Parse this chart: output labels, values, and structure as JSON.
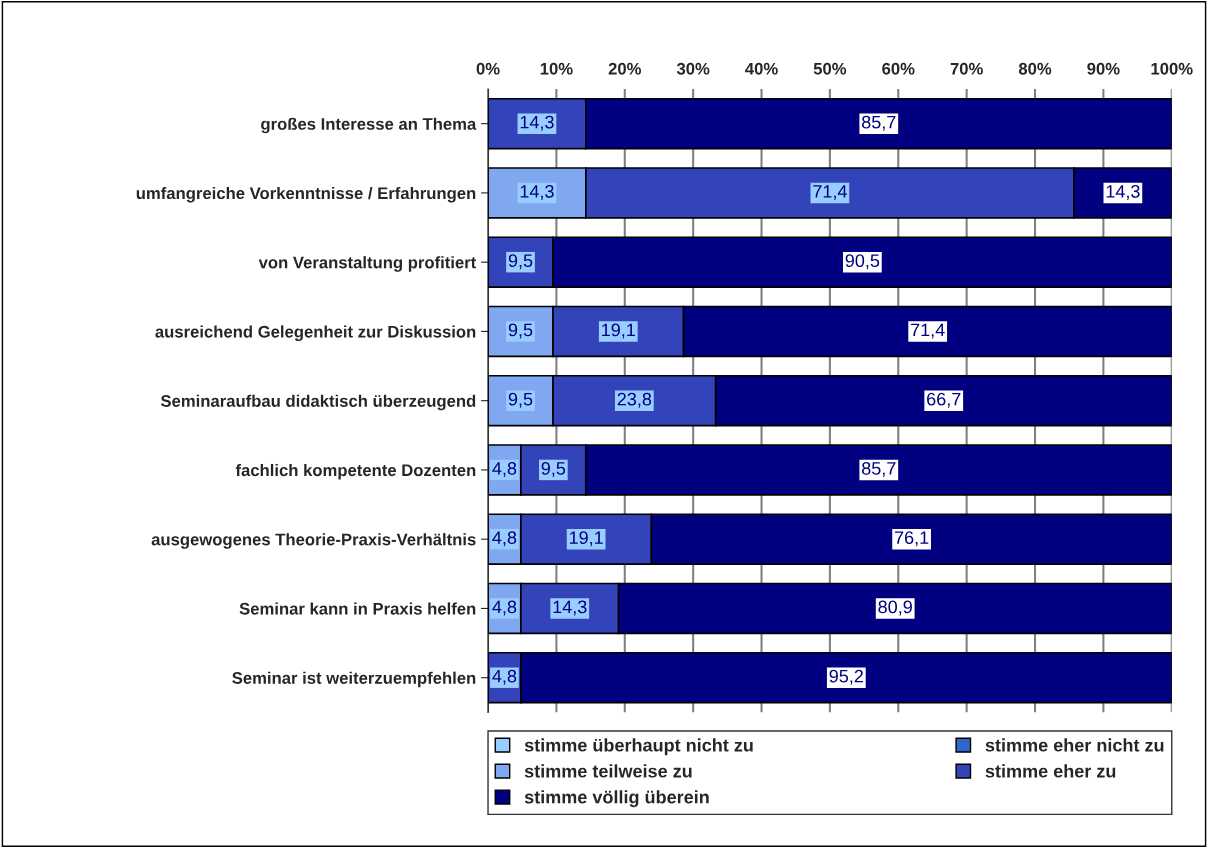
{
  "chart_data": {
    "type": "bar",
    "orientation": "horizontal",
    "stacked": true,
    "categories": [
      "großes Interesse an Thema",
      "umfangreiche Vorkenntnisse / Erfahrungen",
      "von Veranstaltung profitiert",
      "ausreichend Gelegenheit zur Diskussion",
      "Seminaraufbau didaktisch überzeugend",
      "fachlich kompetente Dozenten",
      "ausgewogenes Theorie-Praxis-Verhältnis",
      "Seminar kann in Praxis helfen",
      "Seminar ist weiterzuempfehlen"
    ],
    "series": [
      {
        "name": "stimme überhaupt nicht zu",
        "color": "#99ccff",
        "values": [
          0,
          0,
          0,
          0,
          0,
          0,
          0,
          0,
          0
        ],
        "value_labels": [
          null,
          null,
          null,
          null,
          null,
          null,
          null,
          null,
          null
        ]
      },
      {
        "name": "stimme eher nicht zu",
        "color": "#3366cc",
        "values": [
          0,
          0,
          0,
          0,
          0,
          0,
          0,
          0,
          0
        ],
        "value_labels": [
          null,
          null,
          null,
          null,
          null,
          null,
          null,
          null,
          null
        ]
      },
      {
        "name": "stimme teilweise zu",
        "color": "#7fa8f0",
        "values": [
          0,
          14.3,
          0,
          9.5,
          9.5,
          4.8,
          4.8,
          4.8,
          0
        ],
        "value_labels": [
          null,
          "14,3",
          null,
          "9,5",
          "9,5",
          "4,8",
          "4,8",
          "4,8",
          null
        ]
      },
      {
        "name": "stimme eher zu",
        "color": "#3344bb",
        "values": [
          14.3,
          71.4,
          9.5,
          19.1,
          23.8,
          9.5,
          19.1,
          14.3,
          4.8
        ],
        "value_labels": [
          "14,3",
          "71,4",
          "9,5",
          "19,1",
          "23,8",
          "9,5",
          "19,1",
          "14,3",
          "4,8"
        ]
      },
      {
        "name": "stimme völlig überein",
        "color": "#000080",
        "values": [
          85.7,
          14.3,
          90.5,
          71.4,
          66.7,
          85.7,
          76.1,
          80.9,
          95.2
        ],
        "value_labels": [
          "85,7",
          "14,3",
          "90,5",
          "71,4",
          "66,7",
          "85,7",
          "76,1",
          "80,9",
          "95,2"
        ]
      }
    ],
    "xlim": [
      0,
      100
    ],
    "xticks": [
      {
        "value": 0,
        "label": "0%"
      },
      {
        "value": 10,
        "label": "10%"
      },
      {
        "value": 20,
        "label": "20%"
      },
      {
        "value": 30,
        "label": "30%"
      },
      {
        "value": 40,
        "label": "40%"
      },
      {
        "value": 50,
        "label": "50%"
      },
      {
        "value": 60,
        "label": "60%"
      },
      {
        "value": 70,
        "label": "70%"
      },
      {
        "value": 80,
        "label": "80%"
      },
      {
        "value": 90,
        "label": "90%"
      },
      {
        "value": 100,
        "label": "100%"
      }
    ],
    "grid": "x",
    "legend": "bottom"
  }
}
